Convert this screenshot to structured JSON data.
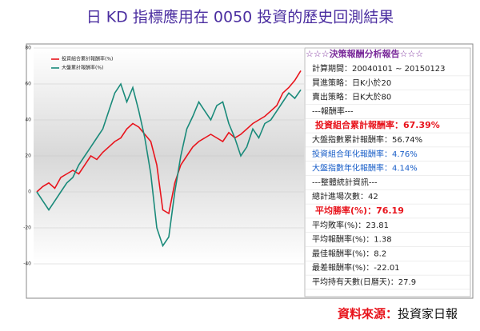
{
  "title": "日 KD 指標應用在 0050 投資的歷史回測結果",
  "chart_data": {
    "type": "line",
    "ylim": [
      -40,
      80
    ],
    "yticks": [
      -40,
      -20,
      0,
      20,
      40,
      60,
      80
    ],
    "grid": true,
    "legend": "upper-left",
    "series": [
      {
        "name": "投資組合累計報酬率(%)",
        "color": "#e8141c",
        "values": [
          0,
          3,
          5,
          2,
          8,
          10,
          12,
          10,
          15,
          20,
          18,
          22,
          25,
          28,
          30,
          35,
          38,
          36,
          32,
          28,
          15,
          -10,
          -12,
          5,
          15,
          20,
          25,
          28,
          30,
          32,
          30,
          28,
          33,
          30,
          32,
          35,
          38,
          40,
          42,
          45,
          48,
          55,
          58,
          62,
          67.39
        ]
      },
      {
        "name": "大盤累計報酬率(%)",
        "color": "#1a8a7a",
        "values": [
          0,
          -5,
          -10,
          -5,
          0,
          5,
          8,
          15,
          20,
          25,
          30,
          35,
          45,
          55,
          60,
          50,
          58,
          45,
          30,
          10,
          -20,
          -30,
          -25,
          0,
          20,
          35,
          42,
          50,
          45,
          40,
          48,
          50,
          38,
          30,
          20,
          25,
          35,
          30,
          38,
          40,
          45,
          50,
          55,
          52,
          56.74
        ]
      }
    ]
  },
  "report": {
    "title": "☆☆☆決策報酬分析報告☆☆☆",
    "title_color": "#7a2a9a",
    "rows": [
      {
        "text": "計算期間：20040101 ~ 20150123",
        "color": "#222222",
        "bold": false
      },
      {
        "text": "買進策略：日K小於20",
        "color": "#222222",
        "bold": false
      },
      {
        "text": "賣出策略：日K大於80",
        "color": "#222222",
        "bold": false
      },
      {
        "text": "---報酬率---",
        "color": "#222222",
        "bold": false
      },
      {
        "text": "投資組合累計報酬率：67.39%",
        "color": "#e8141c",
        "bold": true
      },
      {
        "text": "大盤指數累計報酬率：56.74%",
        "color": "#222222",
        "bold": false
      },
      {
        "text": "投資組合年化報酬率：4.76%",
        "color": "#1a5fc8",
        "bold": false
      },
      {
        "text": "大盤指數年化報酬率：4.14%",
        "color": "#1a5fc8",
        "bold": false
      },
      {
        "text": "---整體統計資訊---",
        "color": "#222222",
        "bold": false
      },
      {
        "text": "總計進場次數：42",
        "color": "#222222",
        "bold": false
      },
      {
        "text": "平均勝率(%)：76.19",
        "color": "#e8141c",
        "bold": true
      },
      {
        "text": "平均敗率(%)：23.81",
        "color": "#222222",
        "bold": false
      },
      {
        "text": "平均報酬率(%)：1.38",
        "color": "#222222",
        "bold": false
      },
      {
        "text": "最佳報酬率(%)：8.2",
        "color": "#222222",
        "bold": false
      },
      {
        "text": "最差報酬率(%)：-22.01",
        "color": "#222222",
        "bold": false
      },
      {
        "text": "平均持有天數(日曆天)：27.9",
        "color": "#222222",
        "bold": false
      }
    ]
  },
  "source_label": "資料來源：",
  "source": "投資家日報"
}
